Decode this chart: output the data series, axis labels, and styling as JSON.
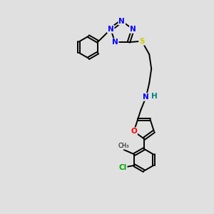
{
  "background_color": "#e0e0e0",
  "atom_colors": {
    "N": "#0000ff",
    "O": "#ff0000",
    "S": "#cccc00",
    "Cl": "#00aa00",
    "C": "#000000",
    "H": "#008080"
  },
  "figsize": [
    3.0,
    3.0
  ],
  "dpi": 100,
  "lw": 1.4,
  "fs": 7.5
}
